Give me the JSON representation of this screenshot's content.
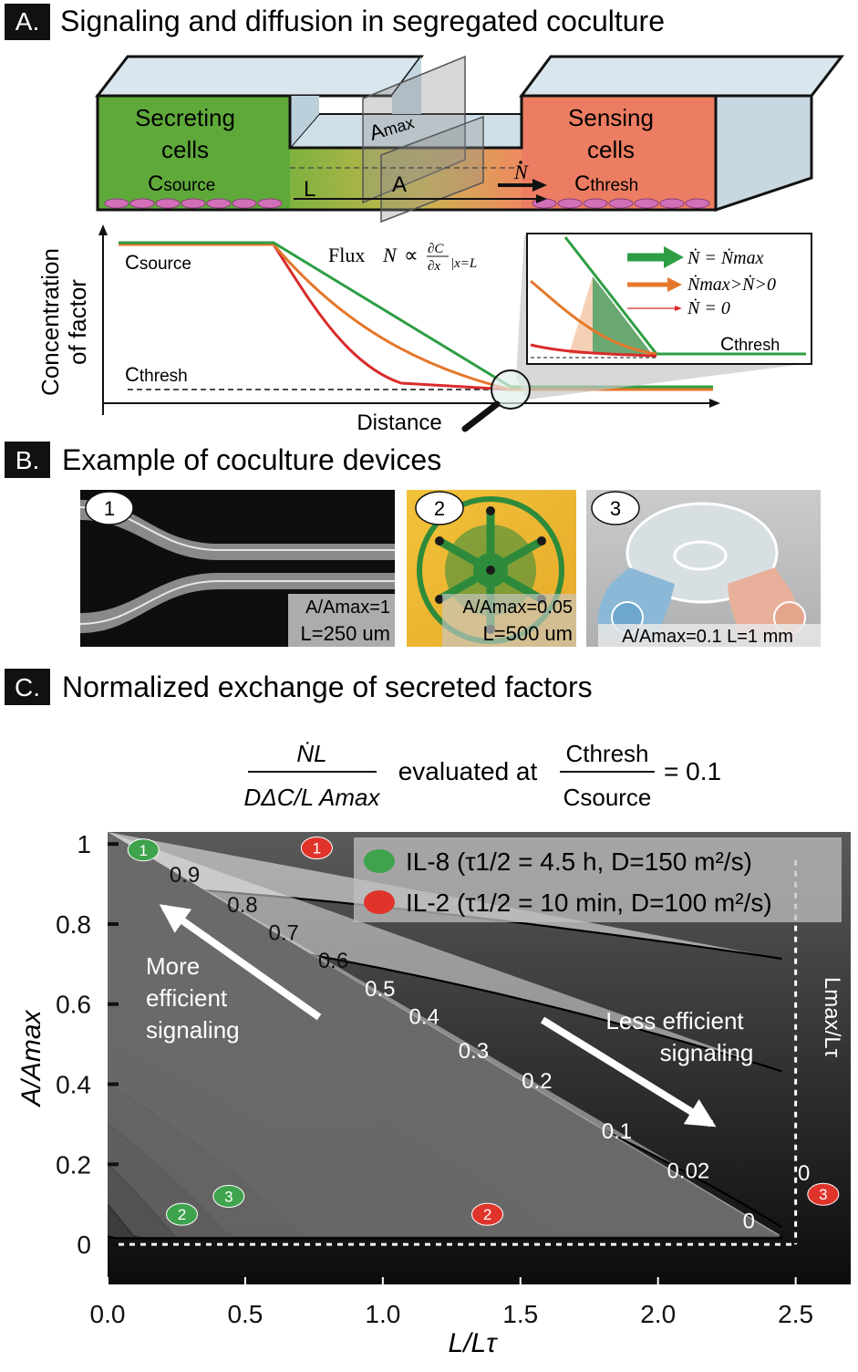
{
  "panelA": {
    "letter": "A.",
    "title": "Signaling and diffusion in segregated coculture",
    "secreting_l1": "Secreting",
    "secreting_l2": "cells",
    "c_source_main": "C",
    "c_source_sub": "source",
    "sensing_l1": "Sensing",
    "sensing_l2": "cells",
    "c_thresh_main": "C",
    "c_thresh_sub": "thresh",
    "amax_main": "A",
    "amax_sub": "max",
    "a_label": "A",
    "l_label": "L",
    "n_label": "N",
    "y_axis_l1": "Concentration",
    "y_axis_l2": "of factor",
    "x_axis": "Distance",
    "flux_label": "Flux",
    "flux_n": "N",
    "flux_prop": "∝",
    "flux_dc": "∂C",
    "flux_dx": "∂x",
    "flux_eval": "|x=L",
    "legend_max": "Ṅ = Ṅmax",
    "legend_mid": "Ṅmax>Ṅ>0",
    "legend_zero": "Ṅ = 0",
    "colors": {
      "green": "#2e9e44",
      "orange": "#e5772a",
      "red": "#d92b2b",
      "secreting": "#5ea93a",
      "sensing": "#eb7b62"
    }
  },
  "panelB": {
    "letter": "B.",
    "title": "Example of coculture devices",
    "devices": [
      {
        "num": "1",
        "l1": "A/Amax=1",
        "l2": "L=250 um"
      },
      {
        "num": "2",
        "l1": "A/Amax=0.05",
        "l2": "L=500 um"
      },
      {
        "num": "3",
        "l1": "A/Amax=0.1 L=1 mm",
        "l2": ""
      }
    ]
  },
  "panelC": {
    "letter": "C.",
    "title": "Normalized exchange of secreted factors",
    "formula_num": "ṄL",
    "formula_den": "DΔC/L Amax",
    "formula_mid": "evaluated at",
    "formula_num2": "Cthresh",
    "formula_den2": "Csource",
    "formula_val": "= 0.1",
    "more_l1": "More",
    "more_l2": "efficient",
    "more_l3": "signaling",
    "less_l1": "Less efficient",
    "less_l2": "signaling",
    "lmax_label": "Lmax/Lτ"
  },
  "chart_data": {
    "type": "contour",
    "title": "Normalized exchange of secreted factors",
    "xlabel": "L/Lτ",
    "ylabel": "A/Amax",
    "xlim": [
      0,
      2.7
    ],
    "ylim": [
      -0.1,
      1.03
    ],
    "xticks": [
      "0.0",
      "0.5",
      "1.0",
      "1.5",
      "2.0",
      "2.5"
    ],
    "xtick_values": [
      0,
      0.5,
      1.0,
      1.5,
      2.0,
      2.5
    ],
    "yticks": [
      "0",
      "0.2",
      "0.4",
      "0.6",
      "0.8",
      "1"
    ],
    "ytick_values": [
      0,
      0.2,
      0.4,
      0.6,
      0.8,
      1.0
    ],
    "contour_levels": [
      0.9,
      0.8,
      0.7,
      0.6,
      0.5,
      0.4,
      0.3,
      0.2,
      0.1,
      0.02,
      0
    ],
    "contour_labels": [
      {
        "text": "0.9",
        "x": 0.28,
        "y": 0.905
      },
      {
        "text": "0.8",
        "x": 0.49,
        "y": 0.83
      },
      {
        "text": "0.7",
        "x": 0.64,
        "y": 0.76
      },
      {
        "text": "0.6",
        "x": 0.82,
        "y": 0.69
      },
      {
        "text": "0.5",
        "x": 0.99,
        "y": 0.62
      },
      {
        "text": "0.4",
        "x": 1.15,
        "y": 0.55
      },
      {
        "text": "0.3",
        "x": 1.33,
        "y": 0.465
      },
      {
        "text": "0.2",
        "x": 1.56,
        "y": 0.39
      },
      {
        "text": "0.1",
        "x": 1.85,
        "y": 0.265
      },
      {
        "text": "0.02",
        "x": 2.11,
        "y": 0.165
      },
      {
        "text": "0",
        "x": 2.33,
        "y": 0.04
      },
      {
        "text": "0",
        "x": 2.53,
        "y": 0.16
      }
    ],
    "lmax_x": 2.5,
    "series": [
      {
        "name": "IL-8 (τ1/2 = 4.5 h, D=150 m²/s)",
        "color": "#3fa34d",
        "points": [
          {
            "label": "1",
            "x": 0.13,
            "y": 0.985
          },
          {
            "label": "2",
            "x": 0.27,
            "y": 0.075
          },
          {
            "label": "3",
            "x": 0.44,
            "y": 0.12
          }
        ]
      },
      {
        "name": "IL-2 (τ1/2 = 10 min, D=100 m²/s)",
        "color": "#e0342b",
        "points": [
          {
            "label": "1",
            "x": 0.76,
            "y": 0.99
          },
          {
            "label": "2",
            "x": 1.38,
            "y": 0.075
          },
          {
            "label": "3",
            "x": 2.6,
            "y": 0.125
          }
        ]
      }
    ]
  }
}
